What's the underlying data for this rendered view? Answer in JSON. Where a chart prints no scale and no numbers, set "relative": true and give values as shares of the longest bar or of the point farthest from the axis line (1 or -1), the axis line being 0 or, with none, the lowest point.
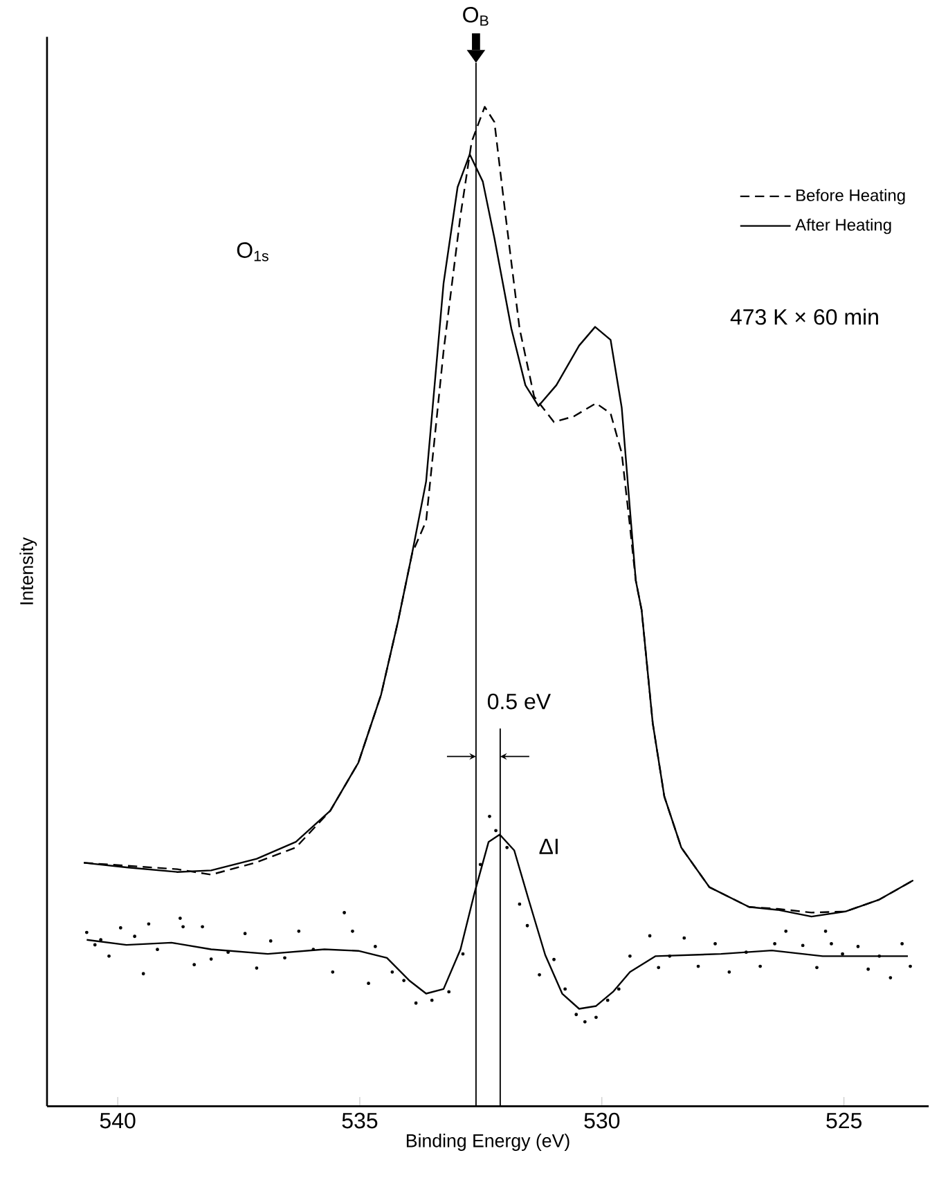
{
  "chart_data": {
    "type": "line",
    "relative": true,
    "xlabel": "Binding Energy (eV)",
    "ylabel": "Intensity",
    "xlim": [
      541.46,
      523.25
    ],
    "xticks": [
      540,
      535,
      530,
      525
    ],
    "legend": "top right",
    "tick_labels": "x",
    "series": [
      {
        "name": "Before Heating",
        "color": "#000000",
        "line_style": "dashed",
        "x": [
          540.7,
          539.82,
          538.77,
          538.07,
          537.13,
          536.32,
          535.61,
          535.03,
          534.56,
          534.21,
          533.92,
          533.63,
          533.27,
          532.92,
          532.69,
          532.42,
          532.22,
          531.99,
          531.7,
          531.4,
          530.99,
          530.58,
          530.12,
          529.82,
          529.59,
          529.42,
          529.3,
          529.18,
          528.95,
          528.71,
          528.36,
          527.78,
          526.96,
          526.37,
          525.67,
          524.97,
          524.27,
          523.57
        ],
        "values": [
          0.2436,
          0.2407,
          0.2372,
          0.2317,
          0.2441,
          0.2589,
          0.2957,
          0.3437,
          0.4118,
          0.4853,
          0.553,
          0.5856,
          0.7555,
          0.8914,
          0.965,
          1.0,
          0.9848,
          0.8914,
          0.7781,
          0.7102,
          0.6846,
          0.6903,
          0.7034,
          0.6932,
          0.6535,
          0.58,
          0.526,
          0.4967,
          0.3834,
          0.3098,
          0.2588,
          0.2192,
          0.1994,
          0.1975,
          0.1938,
          0.1949,
          0.2068,
          0.226
        ]
      },
      {
        "name": "After Heating",
        "color": "#000000",
        "line_style": "solid",
        "x": [
          540.7,
          539.82,
          538.77,
          538.07,
          537.13,
          536.32,
          535.61,
          535.03,
          534.56,
          534.21,
          533.92,
          533.63,
          533.27,
          532.98,
          532.73,
          532.46,
          532.22,
          531.87,
          531.58,
          531.31,
          530.94,
          530.47,
          530.14,
          529.82,
          529.59,
          529.42,
          529.3,
          529.18,
          528.95,
          528.71,
          528.36,
          527.78,
          526.96,
          526.37,
          525.67,
          524.97,
          524.27,
          523.57
        ],
        "values": [
          0.2436,
          0.239,
          0.2344,
          0.236,
          0.2476,
          0.2645,
          0.2957,
          0.3437,
          0.4118,
          0.4853,
          0.553,
          0.6253,
          0.8234,
          0.9197,
          0.9525,
          0.9253,
          0.8687,
          0.7781,
          0.7215,
          0.7006,
          0.7215,
          0.7611,
          0.7798,
          0.7668,
          0.6989,
          0.597,
          0.526,
          0.4967,
          0.3834,
          0.3098,
          0.2588,
          0.2192,
          0.1994,
          0.1965,
          0.1898,
          0.1949,
          0.2068,
          0.226
        ]
      },
      {
        "color": "#000000",
        "line_style": "solid",
        "x": [
          540.64,
          539.82,
          538.89,
          538.07,
          536.9,
          535.73,
          535.03,
          534.44,
          533.98,
          533.63,
          533.27,
          532.92,
          532.63,
          532.34,
          532.11,
          531.81,
          531.52,
          531.17,
          530.82,
          530.47,
          530.12,
          529.77,
          529.42,
          528.89,
          527.54,
          526.49,
          525.44,
          523.68
        ],
        "values": [
          0.1665,
          0.1614,
          0.1637,
          0.157,
          0.1524,
          0.157,
          0.1555,
          0.1484,
          0.1259,
          0.1127,
          0.1173,
          0.157,
          0.2136,
          0.2645,
          0.2719,
          0.256,
          0.2079,
          0.1513,
          0.1127,
          0.0975,
          0.1003,
          0.1145,
          0.1343,
          0.1502,
          0.1524,
          0.1559,
          0.1502,
          0.1502
        ]
      },
      {
        "type": "scatter",
        "marker": "circle",
        "color": "#000000",
        "x": [
          540.64,
          540.47,
          540.35,
          540.18,
          539.94,
          539.65,
          539.47,
          539.36,
          539.18,
          538.71,
          538.65,
          538.42,
          538.25,
          538.07,
          537.72,
          537.37,
          537.13,
          536.84,
          536.55,
          536.26,
          535.96,
          535.56,
          535.32,
          535.15,
          534.82,
          534.68,
          534.33,
          534.09,
          533.84,
          533.51,
          533.16,
          532.87,
          532.51,
          532.32,
          532.19,
          531.96,
          531.7,
          531.54,
          531.29,
          530.99,
          530.76,
          530.53,
          530.35,
          530.12,
          529.88,
          529.65,
          529.42,
          529.01,
          528.83,
          528.6,
          528.3,
          528.01,
          527.66,
          527.37,
          527.02,
          526.73,
          526.43,
          526.2,
          525.85,
          525.56,
          525.38,
          525.26,
          525.03,
          524.71,
          524.5,
          524.27,
          524.04,
          523.8,
          523.63
        ],
        "values": [
          0.1739,
          0.1615,
          0.1666,
          0.1502,
          0.1785,
          0.17,
          0.1326,
          0.1824,
          0.1569,
          0.1881,
          0.1796,
          0.1417,
          0.1796,
          0.1473,
          0.1541,
          0.1728,
          0.1383,
          0.1654,
          0.1485,
          0.1751,
          0.1569,
          0.1343,
          0.1937,
          0.1751,
          0.123,
          0.1598,
          0.1343,
          0.1258,
          0.1032,
          0.106,
          0.1145,
          0.1524,
          0.2419,
          0.29,
          0.2758,
          0.2589,
          0.2022,
          0.1807,
          0.1315,
          0.1468,
          0.1173,
          0.0918,
          0.0845,
          0.089,
          0.106,
          0.1173,
          0.1502,
          0.1705,
          0.1388,
          0.1502,
          0.1683,
          0.14,
          0.1626,
          0.1343,
          0.1541,
          0.14,
          0.1626,
          0.1751,
          0.1609,
          0.1388,
          0.1751,
          0.1626,
          0.1524,
          0.1598,
          0.1371,
          0.1502,
          0.1286,
          0.1626,
          0.14
        ]
      }
    ],
    "ref_lines": [
      {
        "axis": "x",
        "value": 532.6,
        "label": "O$_{B}$"
      },
      {
        "axis": "x",
        "value": 532.1
      }
    ],
    "annotations": [
      "O$_{1s}$",
      "473 K × 60 min",
      "0.5 eV",
      "ΔI"
    ]
  }
}
